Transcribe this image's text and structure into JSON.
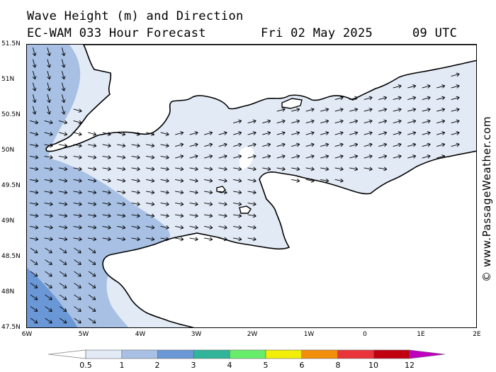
{
  "title": {
    "line1": "Wave Height (m) and Direction",
    "line2_model": "EC-WAM 033 Hour Forecast",
    "line2_date": "Fri 02 May 2025",
    "line2_time": "09 UTC"
  },
  "credit": "© www.PassageWeather.com",
  "axes": {
    "lat_labels": [
      "51.5N",
      "51N",
      "50.5N",
      "50N",
      "49.5N",
      "49N",
      "48.5N",
      "48N",
      "47.5N"
    ],
    "lon_labels": [
      "6W",
      "5W",
      "4W",
      "3W",
      "2W",
      "1W",
      "0",
      "1E",
      "2E"
    ]
  },
  "legend": {
    "labels": [
      "0.5",
      "1",
      "2",
      "3",
      "4",
      "5",
      "6",
      "8",
      "10",
      "12"
    ],
    "colors": [
      "#e2eaf6",
      "#a7c0e3",
      "#6a97d5",
      "#31b59a",
      "#66ee6a",
      "#f2ee08",
      "#f38e0b",
      "#e8343a",
      "#c00010",
      "#c000c0"
    ]
  },
  "map": {
    "region": "English Channel",
    "units": "m",
    "wave_colors": {
      "band_0_5_1": "#e2eaf6",
      "band_1_2": "#a7c0e3",
      "band_2_3": "#6a97d5"
    },
    "land_color": "#ffffff",
    "coast_color": "#000000"
  }
}
